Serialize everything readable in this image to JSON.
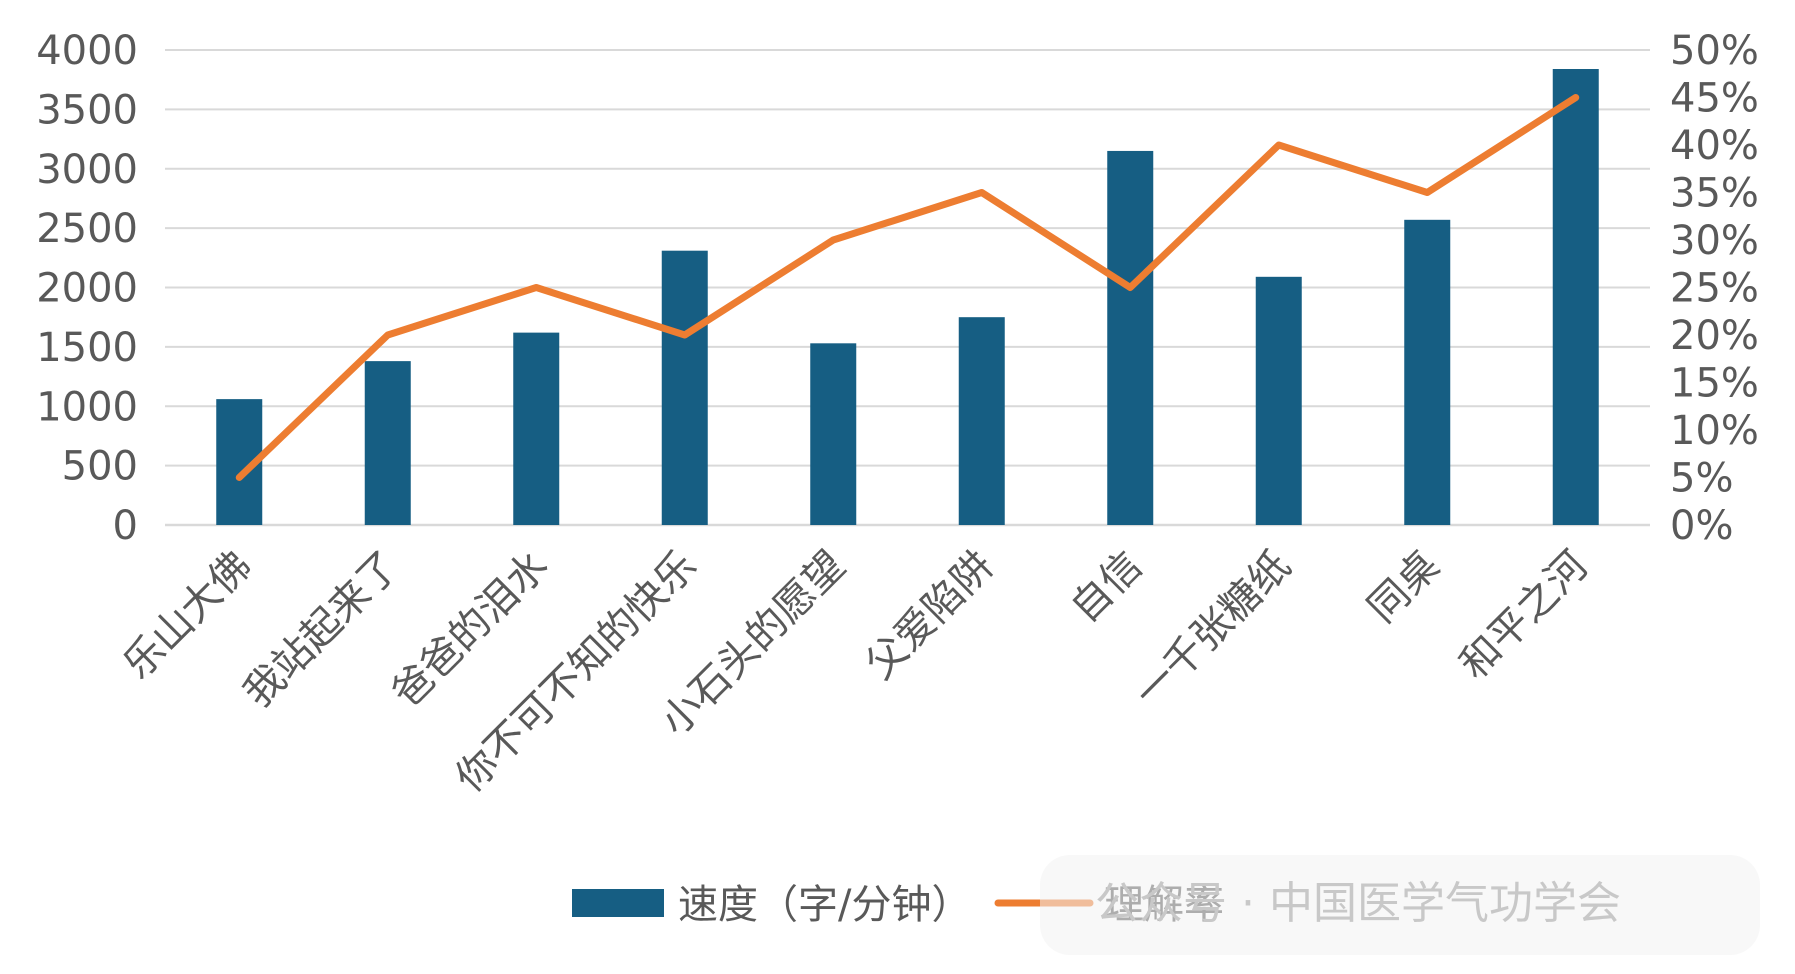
{
  "chart_data": {
    "type": "bar",
    "categories": [
      "乐山大佛",
      "我站起来了",
      "爸爸的泪水",
      "你不可不知的快乐",
      "小石头的愿望",
      "父爱陷阱",
      "自信",
      "一千张糖纸",
      "同桌",
      "和平之河"
    ],
    "series": [
      {
        "name": "速度（字/分钟）",
        "type": "bar",
        "axis": "left",
        "color": "#165e83",
        "values": [
          1060,
          1380,
          1620,
          2310,
          1530,
          1750,
          3150,
          2090,
          2570,
          3840
        ]
      },
      {
        "name": "理解率",
        "type": "line",
        "axis": "right",
        "color": "#ed7d31",
        "values": [
          5,
          20,
          25,
          20,
          30,
          35,
          25,
          40,
          35,
          45
        ]
      }
    ],
    "y_left": {
      "min": 0,
      "max": 4000,
      "step": 500,
      "tick_labels": [
        "0",
        "500",
        "1000",
        "1500",
        "2000",
        "2500",
        "3000",
        "3500",
        "4000"
      ]
    },
    "y_right": {
      "min": 0,
      "max": 50,
      "step": 5,
      "tick_labels": [
        "0%",
        "5%",
        "10%",
        "15%",
        "20%",
        "25%",
        "30%",
        "35%",
        "40%",
        "45%",
        "50%"
      ]
    },
    "grid": true,
    "legend_position": "bottom",
    "title": "",
    "xlabel": "",
    "ylabel": ""
  },
  "watermark": {
    "text": "公众号 · 中国医学气功学会"
  },
  "colors": {
    "grid": "#d9d9d9",
    "text": "#595959"
  }
}
